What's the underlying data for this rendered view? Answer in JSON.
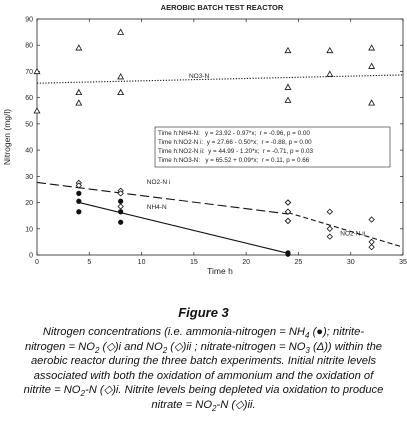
{
  "figure": {
    "heading": "Figure 3",
    "caption": {
      "l1": "Nitrogen concentrations (i.e. ammonia-nitrogen = NH",
      "l1_sub": "4",
      "l1_tail": " (●); nitrite-",
      "l2": "nitrogen = NO",
      "l2_sub": "2",
      "l2_mid": " (◇)i and NO",
      "l2_sub2": "2",
      "l2_tail": " (◇)ii ; nitrate-nitrogen = NO",
      "l2_sub3": "3",
      "l2_end": " (Δ)) within the",
      "l3": "aerobic reactor during the three batch experiments. Initial nitrite levels",
      "l4": "associated with both the oxidation of ammonium and the oxidation of",
      "l5": "nitrite = NO",
      "l5_sub": "2",
      "l5_tail": "-N (◇)i. Nitrite levels being depleted via oxidation to produce",
      "l6": "nitrate = NO",
      "l6_sub": "2",
      "l6_tail": "-N (◇)ii."
    }
  },
  "chart_data": {
    "type": "scatter",
    "title": "AEROBIC BATCH TEST REACTOR",
    "xlabel": "Time h",
    "ylabel": "Nitrogen (mg/l)",
    "xlim": [
      0,
      35
    ],
    "ylim": [
      0,
      90
    ],
    "xticks": [
      0,
      5,
      10,
      15,
      20,
      25,
      30,
      35
    ],
    "yticks": [
      0,
      10,
      20,
      30,
      40,
      50,
      60,
      70,
      80,
      90
    ],
    "grid": false,
    "series": [
      {
        "name": "NH4-N",
        "marker": "filled-circle",
        "points": [
          [
            4,
            23.5
          ],
          [
            4,
            20.5
          ],
          [
            4,
            16.5
          ],
          [
            8,
            20.5
          ],
          [
            8,
            16.5
          ],
          [
            8,
            12.5
          ],
          [
            24,
            0.3
          ],
          [
            24,
            0.8
          ]
        ]
      },
      {
        "name": "NO2-N i",
        "marker": "open-diamond",
        "points": [
          [
            4,
            27.5
          ],
          [
            4,
            26.5
          ],
          [
            8,
            24.5
          ],
          [
            8,
            23.5
          ],
          [
            8,
            18.5
          ],
          [
            24,
            20.0
          ],
          [
            24,
            16.5
          ],
          [
            24,
            13.0
          ]
        ]
      },
      {
        "name": "NO2-N ii",
        "marker": "open-diamond",
        "points": [
          [
            24,
            20.0
          ],
          [
            24,
            16.5
          ],
          [
            24,
            13.0
          ],
          [
            28,
            16.5
          ],
          [
            28,
            10.0
          ],
          [
            28,
            7.0
          ],
          [
            32,
            13.5
          ],
          [
            32,
            5.0
          ],
          [
            32,
            3.0
          ]
        ]
      },
      {
        "name": "NO3-N",
        "marker": "open-triangle",
        "points": [
          [
            0,
            70
          ],
          [
            0,
            55
          ],
          [
            4,
            79
          ],
          [
            4,
            62
          ],
          [
            4,
            58
          ],
          [
            8,
            85
          ],
          [
            8,
            68
          ],
          [
            8,
            62
          ],
          [
            24,
            78
          ],
          [
            24,
            64
          ],
          [
            24,
            59
          ],
          [
            28,
            78
          ],
          [
            28,
            69
          ],
          [
            32,
            79
          ],
          [
            32,
            72
          ],
          [
            32,
            58
          ]
        ]
      }
    ],
    "fits": [
      {
        "series": "NH4-N",
        "intercept": 23.92,
        "slope": -0.97,
        "x_range": [
          4,
          24
        ],
        "style": "solid",
        "label": "NH4-N"
      },
      {
        "series": "NO2-N i",
        "intercept": 27.66,
        "slope": -0.5,
        "x_range": [
          0,
          24
        ],
        "style": "long-dash",
        "label": "NO2-N i"
      },
      {
        "series": "NO2-N ii",
        "intercept": 44.99,
        "slope": -1.2,
        "x_range": [
          24,
          35
        ],
        "style": "short-dash",
        "label": "NO2-N ii"
      },
      {
        "series": "NO3-N",
        "intercept": 65.52,
        "slope": 0.09,
        "x_range": [
          0,
          35
        ],
        "style": "dotted",
        "label": "NO3-N"
      }
    ],
    "stats_box": [
      "Time h:NH4-N:   y = 23.92 - 0.97*x;  r = -0.96, p = 0.00",
      "Time h:NO2-N i:  y = 27.66 - 0.50*x;  r = -0.88, p = 0.00",
      "Time h:NO2-N ii:  y = 44.99 - 1.20*x;  r = -0.71, p = 0.03",
      "Time h:NO3-N:   y = 65.52 + 0.09*x;  r = 0.11, p = 0.66"
    ]
  }
}
